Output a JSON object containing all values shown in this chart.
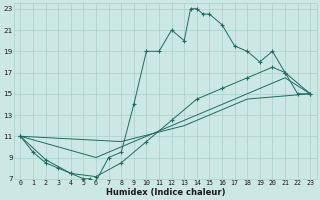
{
  "xlabel": "Humidex (Indice chaleur)",
  "bg_color": "#cce8e4",
  "grid_color": "#aacfcc",
  "line_color": "#1e6b62",
  "xlim": [
    -0.5,
    23.5
  ],
  "ylim": [
    7,
    23.5
  ],
  "xticks": [
    0,
    1,
    2,
    3,
    4,
    5,
    6,
    7,
    8,
    9,
    10,
    11,
    12,
    13,
    14,
    15,
    16,
    17,
    18,
    19,
    20,
    21,
    22,
    23
  ],
  "yticks": [
    7,
    9,
    11,
    13,
    15,
    17,
    19,
    21,
    23
  ],
  "curve_x": [
    0,
    1,
    2,
    3,
    4,
    5,
    5.5,
    6,
    7,
    8,
    9,
    10,
    11,
    12,
    13,
    13.5,
    14,
    14.5,
    15,
    16,
    17,
    18,
    19,
    20,
    21,
    22,
    23
  ],
  "curve_y": [
    11,
    9.5,
    8.5,
    8,
    7.5,
    7,
    7,
    6.8,
    9,
    9.5,
    14,
    19,
    19,
    21,
    20,
    23,
    23,
    22.5,
    22.5,
    21.5,
    19.5,
    19,
    18,
    19,
    17,
    15,
    15
  ],
  "diag1_x": [
    0,
    2,
    4,
    6,
    8,
    10,
    12,
    14,
    16,
    18,
    20,
    21,
    23
  ],
  "diag1_y": [
    11,
    8.8,
    7.5,
    7.2,
    8.5,
    10.5,
    12.5,
    14.5,
    15.5,
    16.5,
    17.5,
    17,
    15
  ],
  "diag2_x": [
    0,
    6,
    10,
    14,
    18,
    21,
    23
  ],
  "diag2_y": [
    11,
    9,
    11,
    13,
    15,
    16.5,
    15
  ],
  "diag3_x": [
    0,
    8,
    13,
    18,
    23
  ],
  "diag3_y": [
    11,
    10.5,
    12,
    14.5,
    15
  ]
}
